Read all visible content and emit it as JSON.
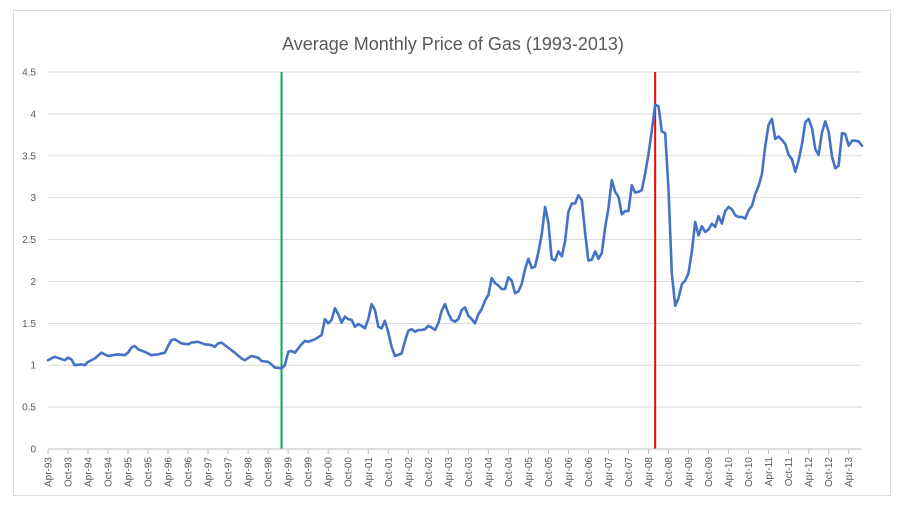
{
  "chart_data": {
    "type": "line",
    "title": "Average Monthly Price of Gas (1993-2013)",
    "xlabel": "",
    "ylabel": "",
    "ylim": [
      0,
      4.5
    ],
    "y_ticks": [
      "0",
      "0.5",
      "1",
      "1.5",
      "2",
      "2.5",
      "3",
      "3.5",
      "4",
      "4.5"
    ],
    "x_tick_labels": [
      "Apr-93",
      "Oct-93",
      "Apr-94",
      "Oct-94",
      "Apr-95",
      "Oct-95",
      "Apr-96",
      "Oct-96",
      "Apr-97",
      "Oct-97",
      "Apr-98",
      "Oct-98",
      "Apr-99",
      "Oct-99",
      "Apr-00",
      "Oct-00",
      "Apr-01",
      "Oct-01",
      "Apr-02",
      "Oct-02",
      "Apr-03",
      "Oct-03",
      "Apr-04",
      "Oct-04",
      "Apr-05",
      "Oct-05",
      "Apr-06",
      "Oct-06",
      "Apr-07",
      "Oct-07",
      "Apr-08",
      "Oct-08",
      "Apr-09",
      "Oct-09",
      "Apr-10",
      "Oct-10",
      "Apr-11",
      "Oct-11",
      "Apr-12",
      "Oct-12",
      "Apr-13"
    ],
    "x_start": "Apr-93",
    "grid": "horizontal",
    "legend": "none",
    "series": [
      {
        "color": "#4472c4",
        "anchors": [
          [
            "Apr-93",
            1.06
          ],
          [
            "Jun-93",
            1.1
          ],
          [
            "Sep-93",
            1.06
          ],
          [
            "Oct-93",
            1.09
          ],
          [
            "Nov-93",
            1.07
          ],
          [
            "Dec-93",
            1.0
          ],
          [
            "Feb-94",
            1.01
          ],
          [
            "Mar-94",
            1.0
          ],
          [
            "Apr-94",
            1.04
          ],
          [
            "Jun-94",
            1.08
          ],
          [
            "Aug-94",
            1.15
          ],
          [
            "Oct-94",
            1.11
          ],
          [
            "Jan-95",
            1.13
          ],
          [
            "Mar-95",
            1.12
          ],
          [
            "Apr-95",
            1.15
          ],
          [
            "May-95",
            1.21
          ],
          [
            "Jun-95",
            1.23
          ],
          [
            "Jul-95",
            1.19
          ],
          [
            "Sep-95",
            1.16
          ],
          [
            "Nov-95",
            1.12
          ],
          [
            "Jan-96",
            1.13
          ],
          [
            "Mar-96",
            1.15
          ],
          [
            "Apr-96",
            1.23
          ],
          [
            "May-96",
            1.3
          ],
          [
            "Jun-96",
            1.31
          ],
          [
            "Aug-96",
            1.26
          ],
          [
            "Oct-96",
            1.25
          ],
          [
            "Nov-96",
            1.27
          ],
          [
            "Jan-97",
            1.28
          ],
          [
            "Mar-97",
            1.25
          ],
          [
            "May-97",
            1.24
          ],
          [
            "Jun-97",
            1.22
          ],
          [
            "Jul-97",
            1.26
          ],
          [
            "Aug-97",
            1.27
          ],
          [
            "Oct-97",
            1.21
          ],
          [
            "Dec-97",
            1.15
          ],
          [
            "Feb-98",
            1.08
          ],
          [
            "Mar-98",
            1.06
          ],
          [
            "May-98",
            1.11
          ],
          [
            "Jul-98",
            1.09
          ],
          [
            "Aug-98",
            1.05
          ],
          [
            "Oct-98",
            1.04
          ],
          [
            "Nov-98",
            1.01
          ],
          [
            "Dec-98",
            0.97
          ],
          [
            "Jan-99",
            0.97
          ],
          [
            "Feb-99",
            0.96
          ],
          [
            "Mar-99",
            1.0
          ],
          [
            "Apr-99",
            1.16
          ],
          [
            "May-99",
            1.17
          ],
          [
            "Jun-99",
            1.15
          ],
          [
            "Aug-99",
            1.25
          ],
          [
            "Sep-99",
            1.29
          ],
          [
            "Oct-99",
            1.28
          ],
          [
            "Dec-99",
            1.31
          ],
          [
            "Feb-00",
            1.36
          ],
          [
            "Mar-00",
            1.55
          ],
          [
            "Apr-00",
            1.5
          ],
          [
            "May-00",
            1.54
          ],
          [
            "Jun-00",
            1.68
          ],
          [
            "Jul-00",
            1.61
          ],
          [
            "Aug-00",
            1.51
          ],
          [
            "Sep-00",
            1.58
          ],
          [
            "Oct-00",
            1.55
          ],
          [
            "Nov-00",
            1.54
          ],
          [
            "Dec-00",
            1.46
          ],
          [
            "Jan-01",
            1.49
          ],
          [
            "Feb-01",
            1.47
          ],
          [
            "Mar-01",
            1.44
          ],
          [
            "Apr-01",
            1.55
          ],
          [
            "May-01",
            1.73
          ],
          [
            "Jun-01",
            1.66
          ],
          [
            "Jul-01",
            1.46
          ],
          [
            "Aug-01",
            1.44
          ],
          [
            "Sep-01",
            1.53
          ],
          [
            "Oct-01",
            1.39
          ],
          [
            "Nov-01",
            1.22
          ],
          [
            "Dec-01",
            1.11
          ],
          [
            "Feb-02",
            1.14
          ],
          [
            "Mar-02",
            1.29
          ],
          [
            "Apr-02",
            1.41
          ],
          [
            "May-02",
            1.43
          ],
          [
            "Jun-02",
            1.4
          ],
          [
            "Jul-02",
            1.42
          ],
          [
            "Aug-02",
            1.42
          ],
          [
            "Sep-02",
            1.43
          ],
          [
            "Oct-02",
            1.47
          ],
          [
            "Nov-02",
            1.45
          ],
          [
            "Dec-02",
            1.42
          ],
          [
            "Jan-03",
            1.5
          ],
          [
            "Feb-03",
            1.65
          ],
          [
            "Mar-03",
            1.73
          ],
          [
            "Apr-03",
            1.62
          ],
          [
            "May-03",
            1.54
          ],
          [
            "Jun-03",
            1.52
          ],
          [
            "Jul-03",
            1.55
          ],
          [
            "Aug-03",
            1.66
          ],
          [
            "Sep-03",
            1.69
          ],
          [
            "Oct-03",
            1.59
          ],
          [
            "Nov-03",
            1.55
          ],
          [
            "Dec-03",
            1.5
          ],
          [
            "Jan-04",
            1.61
          ],
          [
            "Feb-04",
            1.67
          ],
          [
            "Mar-04",
            1.77
          ],
          [
            "Apr-04",
            1.84
          ],
          [
            "May-04",
            2.04
          ],
          [
            "Jun-04",
            1.98
          ],
          [
            "Jul-04",
            1.95
          ],
          [
            "Aug-04",
            1.91
          ],
          [
            "Sep-04",
            1.91
          ],
          [
            "Oct-04",
            2.05
          ],
          [
            "Nov-04",
            2.01
          ],
          [
            "Dec-04",
            1.86
          ],
          [
            "Jan-05",
            1.88
          ],
          [
            "Feb-05",
            1.97
          ],
          [
            "Mar-05",
            2.15
          ],
          [
            "Apr-05",
            2.27
          ],
          [
            "May-05",
            2.16
          ],
          [
            "Jun-05",
            2.18
          ],
          [
            "Jul-05",
            2.35
          ],
          [
            "Aug-05",
            2.56
          ],
          [
            "Sep-05",
            2.89
          ],
          [
            "Oct-05",
            2.7
          ],
          [
            "Nov-05",
            2.27
          ],
          [
            "Dec-05",
            2.25
          ],
          [
            "Jan-06",
            2.36
          ],
          [
            "Feb-06",
            2.3
          ],
          [
            "Mar-06",
            2.48
          ],
          [
            "Apr-06",
            2.83
          ],
          [
            "May-06",
            2.93
          ],
          [
            "Jun-06",
            2.93
          ],
          [
            "Jul-06",
            3.03
          ],
          [
            "Aug-06",
            2.97
          ],
          [
            "Sep-06",
            2.58
          ],
          [
            "Oct-06",
            2.25
          ],
          [
            "Nov-06",
            2.26
          ],
          [
            "Dec-06",
            2.36
          ],
          [
            "Jan-07",
            2.27
          ],
          [
            "Feb-07",
            2.34
          ],
          [
            "Mar-07",
            2.64
          ],
          [
            "Apr-07",
            2.88
          ],
          [
            "May-07",
            3.21
          ],
          [
            "Jun-07",
            3.07
          ],
          [
            "Jul-07",
            3.01
          ],
          [
            "Aug-07",
            2.8
          ],
          [
            "Sep-07",
            2.84
          ],
          [
            "Oct-07",
            2.84
          ],
          [
            "Nov-07",
            3.15
          ],
          [
            "Dec-07",
            3.06
          ],
          [
            "Jan-08",
            3.07
          ],
          [
            "Feb-08",
            3.09
          ],
          [
            "Mar-08",
            3.29
          ],
          [
            "Apr-08",
            3.52
          ],
          [
            "May-08",
            3.8
          ],
          [
            "Jun-08",
            4.11
          ],
          [
            "Jul-08",
            4.09
          ],
          [
            "Aug-08",
            3.79
          ],
          [
            "Sep-08",
            3.77
          ],
          [
            "Oct-08",
            3.1
          ],
          [
            "Nov-08",
            2.1
          ],
          [
            "Dec-08",
            1.71
          ],
          [
            "Jan-09",
            1.8
          ],
          [
            "Feb-09",
            1.97
          ],
          [
            "Mar-09",
            2.01
          ],
          [
            "Apr-09",
            2.1
          ],
          [
            "May-09",
            2.36
          ],
          [
            "Jun-09",
            2.71
          ],
          [
            "Jul-09",
            2.55
          ],
          [
            "Aug-09",
            2.66
          ],
          [
            "Sep-09",
            2.59
          ],
          [
            "Oct-09",
            2.62
          ],
          [
            "Nov-09",
            2.69
          ],
          [
            "Dec-09",
            2.65
          ],
          [
            "Jan-10",
            2.78
          ],
          [
            "Feb-10",
            2.69
          ],
          [
            "Mar-10",
            2.84
          ],
          [
            "Apr-10",
            2.89
          ],
          [
            "May-10",
            2.86
          ],
          [
            "Jun-10",
            2.79
          ],
          [
            "Jul-10",
            2.77
          ],
          [
            "Aug-10",
            2.77
          ],
          [
            "Sep-10",
            2.75
          ],
          [
            "Oct-10",
            2.85
          ],
          [
            "Nov-10",
            2.9
          ],
          [
            "Dec-10",
            3.04
          ],
          [
            "Jan-11",
            3.14
          ],
          [
            "Feb-11",
            3.28
          ],
          [
            "Mar-11",
            3.62
          ],
          [
            "Apr-11",
            3.87
          ],
          [
            "May-11",
            3.94
          ],
          [
            "Jun-11",
            3.7
          ],
          [
            "Jul-11",
            3.73
          ],
          [
            "Aug-11",
            3.69
          ],
          [
            "Sep-11",
            3.64
          ],
          [
            "Oct-11",
            3.51
          ],
          [
            "Nov-11",
            3.46
          ],
          [
            "Dec-11",
            3.31
          ],
          [
            "Jan-12",
            3.44
          ],
          [
            "Feb-12",
            3.64
          ],
          [
            "Mar-12",
            3.9
          ],
          [
            "Apr-12",
            3.94
          ],
          [
            "May-12",
            3.83
          ],
          [
            "Jun-12",
            3.58
          ],
          [
            "Jul-12",
            3.51
          ],
          [
            "Aug-12",
            3.78
          ],
          [
            "Sep-12",
            3.91
          ],
          [
            "Oct-12",
            3.79
          ],
          [
            "Nov-12",
            3.49
          ],
          [
            "Dec-12",
            3.35
          ],
          [
            "Jan-13",
            3.38
          ],
          [
            "Feb-13",
            3.77
          ],
          [
            "Mar-13",
            3.76
          ],
          [
            "Apr-13",
            3.62
          ],
          [
            "May-13",
            3.68
          ],
          [
            "Jun-13",
            3.68
          ],
          [
            "Jul-13",
            3.67
          ],
          [
            "Aug-13",
            3.62
          ]
        ]
      }
    ],
    "markers": [
      {
        "x": "Feb-99",
        "color": "#00b050"
      },
      {
        "x": "Jun-08",
        "color": "#ff0000"
      }
    ]
  }
}
